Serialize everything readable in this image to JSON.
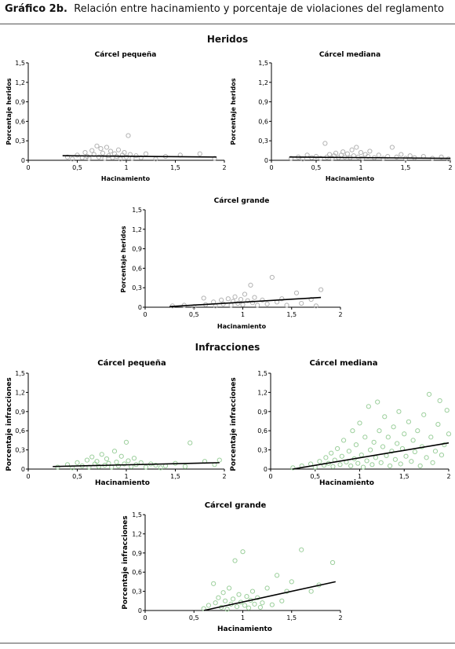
{
  "header": {
    "figure_label": "Gráfico 2b.",
    "title": "Relación entre hacinamiento y porcentaje de violaciones del reglamento"
  },
  "sections": {
    "heridos": "Heridos",
    "infracciones": "Infracciones"
  },
  "colors": {
    "heridos_points": "#b3b3b3",
    "infracciones_points": "#9ccf9c",
    "trend": "#000000",
    "axis": "#000000"
  },
  "chart_data": [
    {
      "type": "scatter",
      "section": "Heridos",
      "title": "Cárcel pequeña",
      "xlabel": "Hacinamiento",
      "ylabel": "Porcentaje heridos",
      "xlim": [
        0,
        2
      ],
      "ylim": [
        0,
        1.5
      ],
      "xticks": [
        "0",
        "0,5",
        "1",
        "1,5",
        "2"
      ],
      "yticks": [
        "0",
        "0,3",
        "0,6",
        "0,9",
        "1,2",
        "1,5"
      ],
      "trend": [
        [
          0.35,
          0.07
        ],
        [
          1.92,
          0.05
        ]
      ],
      "points": [
        [
          0.4,
          0.05
        ],
        [
          0.45,
          0.02
        ],
        [
          0.5,
          0.08
        ],
        [
          0.55,
          0.04
        ],
        [
          0.58,
          0.12
        ],
        [
          0.6,
          0.06
        ],
        [
          0.62,
          0.03
        ],
        [
          0.65,
          0.15
        ],
        [
          0.67,
          0.09
        ],
        [
          0.7,
          0.22
        ],
        [
          0.72,
          0.05
        ],
        [
          0.74,
          0.18
        ],
        [
          0.76,
          0.11
        ],
        [
          0.78,
          0.03
        ],
        [
          0.8,
          0.2
        ],
        [
          0.82,
          0.07
        ],
        [
          0.84,
          0.14
        ],
        [
          0.86,
          0.04
        ],
        [
          0.88,
          0.1
        ],
        [
          0.9,
          0.06
        ],
        [
          0.92,
          0.16
        ],
        [
          0.94,
          0.02
        ],
        [
          0.96,
          0.08
        ],
        [
          0.98,
          0.12
        ],
        [
          1.0,
          0.05
        ],
        [
          1.02,
          0.38
        ],
        [
          1.04,
          0.09
        ],
        [
          1.06,
          0.03
        ],
        [
          1.1,
          0.07
        ],
        [
          1.15,
          0.04
        ],
        [
          1.2,
          0.1
        ],
        [
          1.3,
          0.02
        ],
        [
          1.4,
          0.06
        ],
        [
          1.55,
          0.08
        ],
        [
          1.75,
          0.1
        ],
        [
          1.9,
          0.03
        ]
      ]
    },
    {
      "type": "scatter",
      "section": "Heridos",
      "title": "Cárcel mediana",
      "xlabel": "Hacinamiento",
      "ylabel": "Porcentaje heridos",
      "xlim": [
        0,
        2
      ],
      "ylim": [
        0,
        1.5
      ],
      "xticks": [
        "0",
        "0,5",
        "1",
        "1,5",
        "2"
      ],
      "yticks": [
        "0",
        "0,3",
        "0,6",
        "0,9",
        "1,2",
        "1,5"
      ],
      "trend": [
        [
          0.2,
          0.05
        ],
        [
          2.0,
          0.03
        ]
      ],
      "points": [
        [
          0.22,
          0.03
        ],
        [
          0.3,
          0.05
        ],
        [
          0.35,
          0.02
        ],
        [
          0.4,
          0.08
        ],
        [
          0.45,
          0.04
        ],
        [
          0.5,
          0.06
        ],
        [
          0.55,
          0.03
        ],
        [
          0.6,
          0.26
        ],
        [
          0.62,
          0.05
        ],
        [
          0.65,
          0.09
        ],
        [
          0.68,
          0.03
        ],
        [
          0.7,
          0.07
        ],
        [
          0.72,
          0.11
        ],
        [
          0.75,
          0.04
        ],
        [
          0.78,
          0.08
        ],
        [
          0.8,
          0.13
        ],
        [
          0.82,
          0.05
        ],
        [
          0.85,
          0.1
        ],
        [
          0.88,
          0.04
        ],
        [
          0.9,
          0.16
        ],
        [
          0.92,
          0.07
        ],
        [
          0.95,
          0.2
        ],
        [
          0.97,
          0.05
        ],
        [
          1.0,
          0.12
        ],
        [
          1.02,
          0.03
        ],
        [
          1.05,
          0.09
        ],
        [
          1.08,
          0.06
        ],
        [
          1.1,
          0.14
        ],
        [
          1.15,
          0.04
        ],
        [
          1.2,
          0.08
        ],
        [
          1.25,
          0.03
        ],
        [
          1.3,
          0.06
        ],
        [
          1.35,
          0.2
        ],
        [
          1.4,
          0.05
        ],
        [
          1.45,
          0.09
        ],
        [
          1.5,
          0.03
        ],
        [
          1.55,
          0.07
        ],
        [
          1.6,
          0.04
        ],
        [
          1.7,
          0.06
        ],
        [
          1.8,
          0.03
        ],
        [
          1.9,
          0.05
        ],
        [
          1.98,
          0.02
        ]
      ]
    },
    {
      "type": "scatter",
      "section": "Heridos",
      "title": "Cárcel grande",
      "xlabel": "Hacinamiento",
      "ylabel": "Porcentaje heridos",
      "xlim": [
        0,
        2
      ],
      "ylim": [
        0,
        1.5
      ],
      "xticks": [
        "0",
        "0,5",
        "1",
        "1,5",
        "2"
      ],
      "yticks": [
        "0",
        "0,3",
        "0,6",
        "0,9",
        "1,2",
        "1,5"
      ],
      "trend": [
        [
          0.25,
          0.01
        ],
        [
          1.8,
          0.15
        ]
      ],
      "points": [
        [
          0.28,
          0.02
        ],
        [
          0.4,
          0.03
        ],
        [
          0.5,
          0.01
        ],
        [
          0.6,
          0.14
        ],
        [
          0.62,
          0.04
        ],
        [
          0.7,
          0.08
        ],
        [
          0.72,
          0.02
        ],
        [
          0.78,
          0.11
        ],
        [
          0.8,
          0.05
        ],
        [
          0.85,
          0.13
        ],
        [
          0.88,
          0.03
        ],
        [
          0.9,
          0.09
        ],
        [
          0.92,
          0.16
        ],
        [
          0.95,
          0.06
        ],
        [
          0.98,
          0.12
        ],
        [
          1.0,
          0.04
        ],
        [
          1.02,
          0.2
        ],
        [
          1.05,
          0.1
        ],
        [
          1.08,
          0.34
        ],
        [
          1.1,
          0.07
        ],
        [
          1.12,
          0.15
        ],
        [
          1.15,
          0.03
        ],
        [
          1.2,
          0.11
        ],
        [
          1.25,
          0.05
        ],
        [
          1.3,
          0.46
        ],
        [
          1.35,
          0.08
        ],
        [
          1.4,
          0.13
        ],
        [
          1.45,
          0.03
        ],
        [
          1.55,
          0.22
        ],
        [
          1.6,
          0.06
        ],
        [
          1.7,
          0.12
        ],
        [
          1.75,
          0.02
        ],
        [
          1.8,
          0.27
        ]
      ]
    },
    {
      "type": "scatter",
      "section": "Infracciones",
      "title": "Cárcel pequeña",
      "xlabel": "Hacinamiento",
      "ylabel": "Porcentaje infracciones",
      "xlim": [
        0,
        2
      ],
      "ylim": [
        0,
        1.5
      ],
      "xticks": [
        "0",
        "0,5",
        "1",
        "1,5",
        "2"
      ],
      "yticks": [
        "0",
        "0,3",
        "0,6",
        "0,9",
        "1,2",
        "1,5"
      ],
      "trend": [
        [
          0.25,
          0.04
        ],
        [
          1.95,
          0.1
        ]
      ],
      "points": [
        [
          0.3,
          0.03
        ],
        [
          0.4,
          0.07
        ],
        [
          0.45,
          0.02
        ],
        [
          0.5,
          0.1
        ],
        [
          0.55,
          0.05
        ],
        [
          0.6,
          0.14
        ],
        [
          0.62,
          0.03
        ],
        [
          0.65,
          0.19
        ],
        [
          0.68,
          0.08
        ],
        [
          0.7,
          0.12
        ],
        [
          0.72,
          0.04
        ],
        [
          0.75,
          0.23
        ],
        [
          0.78,
          0.06
        ],
        [
          0.8,
          0.16
        ],
        [
          0.82,
          0.09
        ],
        [
          0.85,
          0.03
        ],
        [
          0.88,
          0.28
        ],
        [
          0.9,
          0.11
        ],
        [
          0.92,
          0.05
        ],
        [
          0.95,
          0.2
        ],
        [
          0.98,
          0.08
        ],
        [
          1.0,
          0.42
        ],
        [
          1.02,
          0.13
        ],
        [
          1.05,
          0.04
        ],
        [
          1.08,
          0.17
        ],
        [
          1.1,
          0.07
        ],
        [
          1.15,
          0.1
        ],
        [
          1.2,
          0.03
        ],
        [
          1.25,
          0.08
        ],
        [
          1.3,
          0.06
        ],
        [
          1.35,
          0.02
        ],
        [
          1.4,
          0.05
        ],
        [
          1.5,
          0.09
        ],
        [
          1.6,
          0.04
        ],
        [
          1.65,
          0.41
        ],
        [
          1.8,
          0.12
        ],
        [
          1.9,
          0.07
        ],
        [
          1.95,
          0.14
        ]
      ]
    },
    {
      "type": "scatter",
      "section": "Infracciones",
      "title": "Cárcel mediana",
      "xlabel": "Hacinamiento",
      "ylabel": "Porcentaje infracciones",
      "xlim": [
        0,
        2
      ],
      "ylim": [
        0,
        1.5
      ],
      "xticks": [
        "0",
        "0,5",
        "1",
        "1,5",
        "2"
      ],
      "yticks": [
        "0",
        "0,3",
        "0,6",
        "0,9",
        "1,2",
        "1,5"
      ],
      "trend": [
        [
          0.25,
          0.0
        ],
        [
          2.0,
          0.41
        ]
      ],
      "points": [
        [
          0.25,
          0.02
        ],
        [
          0.35,
          0.05
        ],
        [
          0.45,
          0.08
        ],
        [
          0.5,
          0.03
        ],
        [
          0.55,
          0.12
        ],
        [
          0.6,
          0.06
        ],
        [
          0.62,
          0.18
        ],
        [
          0.65,
          0.09
        ],
        [
          0.68,
          0.25
        ],
        [
          0.7,
          0.04
        ],
        [
          0.72,
          0.14
        ],
        [
          0.75,
          0.32
        ],
        [
          0.78,
          0.07
        ],
        [
          0.8,
          0.2
        ],
        [
          0.82,
          0.45
        ],
        [
          0.85,
          0.11
        ],
        [
          0.88,
          0.28
        ],
        [
          0.9,
          0.05
        ],
        [
          0.92,
          0.6
        ],
        [
          0.94,
          0.16
        ],
        [
          0.96,
          0.38
        ],
        [
          0.98,
          0.09
        ],
        [
          1.0,
          0.72
        ],
        [
          1.02,
          0.22
        ],
        [
          1.04,
          0.03
        ],
        [
          1.06,
          0.5
        ],
        [
          1.08,
          0.13
        ],
        [
          1.1,
          0.98
        ],
        [
          1.12,
          0.3
        ],
        [
          1.14,
          0.07
        ],
        [
          1.16,
          0.42
        ],
        [
          1.18,
          0.18
        ],
        [
          1.2,
          1.05
        ],
        [
          1.22,
          0.6
        ],
        [
          1.24,
          0.1
        ],
        [
          1.26,
          0.35
        ],
        [
          1.28,
          0.82
        ],
        [
          1.3,
          0.21
        ],
        [
          1.32,
          0.5
        ],
        [
          1.34,
          0.05
        ],
        [
          1.36,
          0.28
        ],
        [
          1.38,
          0.66
        ],
        [
          1.4,
          0.15
        ],
        [
          1.42,
          0.4
        ],
        [
          1.44,
          0.9
        ],
        [
          1.46,
          0.08
        ],
        [
          1.48,
          0.32
        ],
        [
          1.5,
          0.55
        ],
        [
          1.52,
          0.2
        ],
        [
          1.55,
          0.74
        ],
        [
          1.58,
          0.12
        ],
        [
          1.6,
          0.45
        ],
        [
          1.62,
          0.27
        ],
        [
          1.65,
          0.6
        ],
        [
          1.68,
          0.05
        ],
        [
          1.7,
          0.35
        ],
        [
          1.72,
          0.85
        ],
        [
          1.75,
          0.18
        ],
        [
          1.78,
          1.17
        ],
        [
          1.8,
          0.5
        ],
        [
          1.82,
          0.1
        ],
        [
          1.85,
          0.28
        ],
        [
          1.88,
          0.7
        ],
        [
          1.9,
          1.07
        ],
        [
          1.92,
          0.22
        ],
        [
          1.95,
          0.38
        ],
        [
          1.98,
          0.92
        ],
        [
          2.0,
          0.55
        ]
      ]
    },
    {
      "type": "scatter",
      "section": "Infracciones",
      "title": "Cárcel grande",
      "xlabel": "Hacinamiento",
      "ylabel": "Porcentaje infracciones",
      "xlim": [
        0,
        2
      ],
      "ylim": [
        0,
        1.5
      ],
      "xticks": [
        "0",
        "0,5",
        "1",
        "1,5",
        "2"
      ],
      "yticks": [
        "0",
        "0,3",
        "0,6",
        "0,9",
        "1,2",
        "1,5"
      ],
      "trend": [
        [
          0.6,
          0.0
        ],
        [
          1.95,
          0.45
        ]
      ],
      "points": [
        [
          0.6,
          0.03
        ],
        [
          0.65,
          0.08
        ],
        [
          0.7,
          0.42
        ],
        [
          0.72,
          0.12
        ],
        [
          0.75,
          0.2
        ],
        [
          0.78,
          0.05
        ],
        [
          0.8,
          0.28
        ],
        [
          0.82,
          0.15
        ],
        [
          0.84,
          0.02
        ],
        [
          0.86,
          0.35
        ],
        [
          0.88,
          0.1
        ],
        [
          0.9,
          0.18
        ],
        [
          0.92,
          0.78
        ],
        [
          0.94,
          0.06
        ],
        [
          0.96,
          0.25
        ],
        [
          0.98,
          0.13
        ],
        [
          1.0,
          0.92
        ],
        [
          1.02,
          0.08
        ],
        [
          1.04,
          0.22
        ],
        [
          1.06,
          0.04
        ],
        [
          1.08,
          0.16
        ],
        [
          1.1,
          0.3
        ],
        [
          1.12,
          0.1
        ],
        [
          1.15,
          0.2
        ],
        [
          1.18,
          0.05
        ],
        [
          1.2,
          0.12
        ],
        [
          1.25,
          0.35
        ],
        [
          1.3,
          0.09
        ],
        [
          1.35,
          0.55
        ],
        [
          1.4,
          0.15
        ],
        [
          1.45,
          0.3
        ],
        [
          1.5,
          0.45
        ],
        [
          1.6,
          0.95
        ],
        [
          1.7,
          0.3
        ],
        [
          1.78,
          0.4
        ],
        [
          1.92,
          0.75
        ]
      ]
    }
  ]
}
